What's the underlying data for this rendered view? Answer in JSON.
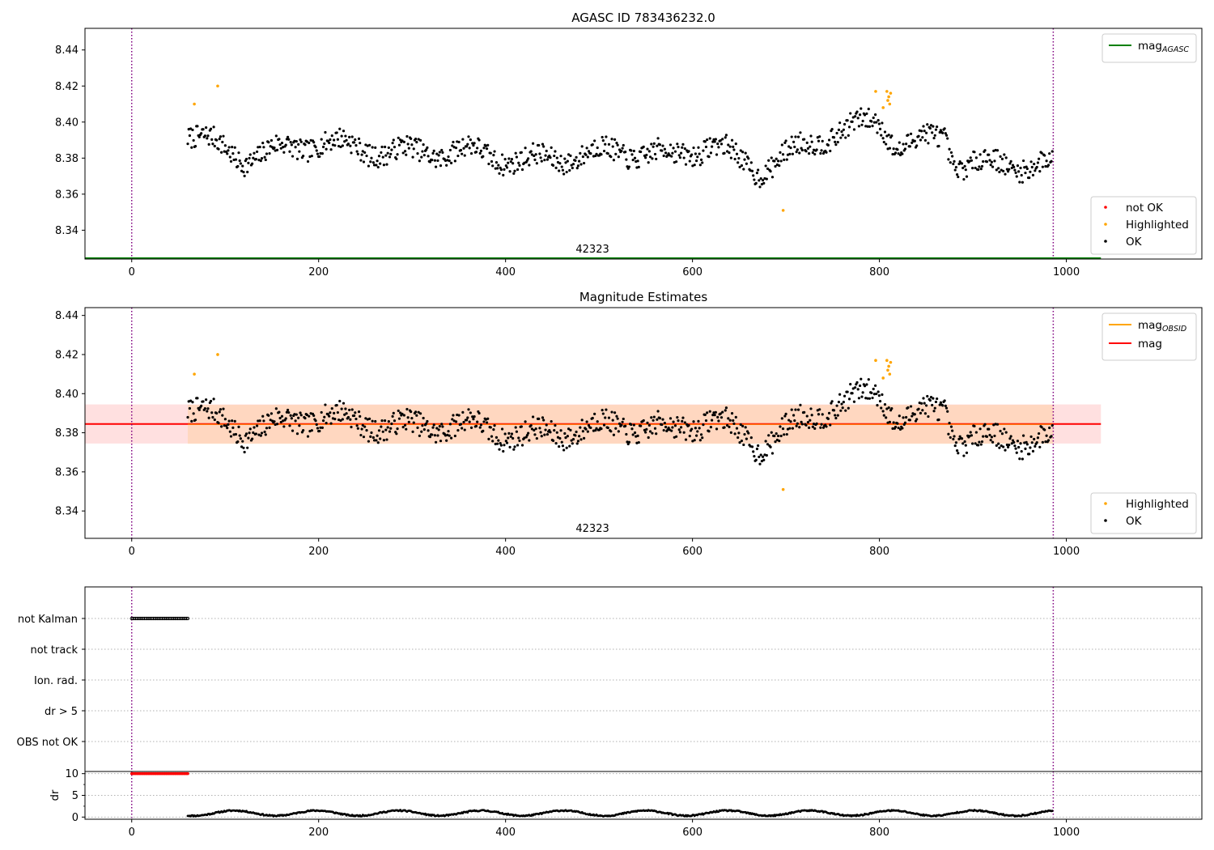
{
  "chart_data": [
    {
      "type": "scatter",
      "title": "AGASC ID 783436232.0",
      "x_range": [
        -50,
        1145
      ],
      "y_range": [
        8.324,
        8.452
      ],
      "x_ticks": [
        0,
        200,
        400,
        600,
        800,
        1000
      ],
      "y_ticks": [
        8.34,
        8.36,
        8.38,
        8.4,
        8.42,
        8.44
      ],
      "y_tick_labels": [
        "8.34",
        "8.36",
        "8.38",
        "8.40",
        "8.42",
        "8.44"
      ],
      "vlines_x": [
        0,
        986
      ],
      "mag_agasc": 8.3245,
      "line_span": [
        -50,
        1037
      ],
      "obsid_label": "42323",
      "obsid_label_x": 493,
      "legend_lines": [
        {
          "label": "mag",
          "sub": "AGASC",
          "color": "#008000"
        }
      ],
      "legend_points": [
        {
          "label": "not OK",
          "color": "#ff0000"
        },
        {
          "label": "Highlighted",
          "color": "#ffa500"
        },
        {
          "label": "OK",
          "color": "#000000"
        }
      ],
      "series": [
        {
          "name": "OK",
          "generator": {
            "n": 900,
            "x_start": 60,
            "x_end": 985,
            "seed": 7
          }
        }
      ],
      "highlighted_points": [
        [
          67,
          8.41
        ],
        [
          92,
          8.42
        ],
        [
          796,
          8.417
        ],
        [
          804,
          8.408
        ],
        [
          808,
          8.417
        ],
        [
          809,
          8.412
        ],
        [
          810,
          8.414
        ],
        [
          811,
          8.41
        ],
        [
          812,
          8.416
        ],
        [
          697,
          8.351
        ]
      ]
    },
    {
      "type": "scatter",
      "title": "Magnitude Estimates",
      "x_range": [
        -50,
        1145
      ],
      "y_range": [
        8.326,
        8.444
      ],
      "x_ticks": [
        0,
        200,
        400,
        600,
        800,
        1000
      ],
      "y_ticks": [
        8.34,
        8.36,
        8.38,
        8.4,
        8.42,
        8.44
      ],
      "y_tick_labels": [
        "8.34",
        "8.36",
        "8.38",
        "8.40",
        "8.42",
        "8.44"
      ],
      "vlines_x": [
        0,
        986
      ],
      "mag": 8.3845,
      "mag_obsid": 8.3843,
      "band_sigma": 0.01,
      "line_span": [
        -50,
        1037
      ],
      "obsid_label": "42323",
      "obsid_label_x": 493,
      "legend_lines": [
        {
          "label": "mag",
          "sub": "OBSID",
          "color": "#ffa500"
        },
        {
          "label": "mag",
          "sub": "",
          "color": "#ff0000"
        }
      ],
      "legend_points": [
        {
          "label": "Highlighted",
          "color": "#ffa500"
        },
        {
          "label": "OK",
          "color": "#000000"
        }
      ],
      "series": [
        {
          "name": "OK",
          "generator": {
            "n": 900,
            "x_start": 60,
            "x_end": 985,
            "seed": 7
          }
        }
      ],
      "highlighted_points": [
        [
          67,
          8.41
        ],
        [
          92,
          8.42
        ],
        [
          796,
          8.417
        ],
        [
          804,
          8.408
        ],
        [
          808,
          8.417
        ],
        [
          809,
          8.412
        ],
        [
          810,
          8.414
        ],
        [
          811,
          8.41
        ],
        [
          812,
          8.416
        ],
        [
          697,
          8.351
        ]
      ]
    },
    {
      "type": "scatter",
      "title": "",
      "x_range": [
        -50,
        1145
      ],
      "y_categories": [
        "not Kalman",
        "not track",
        "Ion. rad.",
        "dr > 5",
        "OBS not OK"
      ],
      "vlines_x": [
        0,
        986
      ],
      "flag_points": {
        "category": "not Kalman",
        "x_start": 0,
        "x_end": 60,
        "n": 45,
        "color": "#000000"
      }
    },
    {
      "type": "scatter",
      "title": "",
      "ylabel": "dr",
      "x_range": [
        -50,
        1145
      ],
      "y_range": [
        -0.5,
        10.5
      ],
      "x_ticks": [
        0,
        200,
        400,
        600,
        800,
        1000
      ],
      "x_tick_labels": [
        "0",
        "200",
        "400",
        "600",
        "800",
        "1000"
      ],
      "y_ticks": [
        0,
        5,
        10
      ],
      "y_tick_labels": [
        "0",
        "5",
        "10"
      ],
      "vlines_x": [
        0,
        986
      ],
      "clipped_points": {
        "x_start": 0,
        "x_end": 60,
        "y": 10,
        "n": 45,
        "color": "#ff0000"
      },
      "series": [
        {
          "name": "dr",
          "generator": {
            "n": 900,
            "x_start": 60,
            "x_end": 985,
            "seed": 11,
            "base": 0.9,
            "amplitude": 0.6
          }
        }
      ]
    }
  ]
}
